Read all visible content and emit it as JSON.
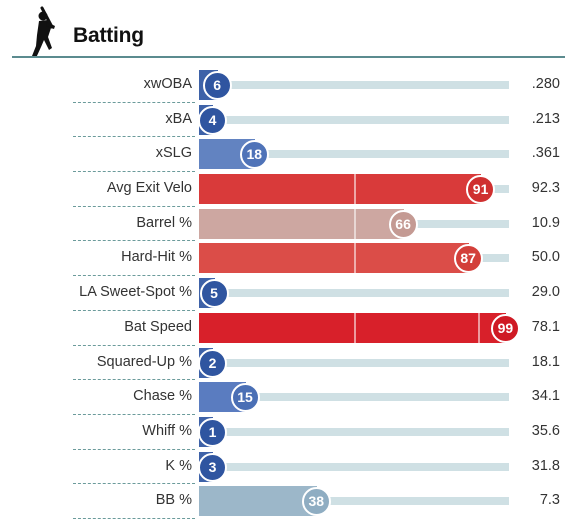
{
  "header": {
    "title": "Batting",
    "icon": "baseball-batter-icon"
  },
  "scale_max": 100,
  "rows": [
    {
      "label": "xwOBA",
      "percentile": 6,
      "value": ".280",
      "bar_color": "#3e62a8",
      "badge_color": "#2f55a0"
    },
    {
      "label": "xBA",
      "percentile": 4,
      "value": ".213",
      "bar_color": "#3e62a8",
      "badge_color": "#2f55a0"
    },
    {
      "label": "xSLG",
      "percentile": 18,
      "value": ".361",
      "bar_color": "#6283c1",
      "badge_color": "#4f73b8"
    },
    {
      "label": "Avg Exit Velo",
      "percentile": 91,
      "value": "92.3",
      "bar_color": "#d93a3a",
      "badge_color": "#cf2f2f"
    },
    {
      "label": "Barrel %",
      "percentile": 66,
      "value": "10.9",
      "bar_color": "#cda7a1",
      "badge_color": "#c49a93"
    },
    {
      "label": "Hard-Hit %",
      "percentile": 87,
      "value": "50.0",
      "bar_color": "#db4d48",
      "badge_color": "#d33f3a"
    },
    {
      "label": "LA Sweet-Spot %",
      "percentile": 5,
      "value": "29.0",
      "bar_color": "#3e62a8",
      "badge_color": "#2f55a0"
    },
    {
      "label": "Bat Speed",
      "percentile": 99,
      "value": "78.1",
      "bar_color": "#d8202a",
      "badge_color": "#cf1a24"
    },
    {
      "label": "Squared-Up %",
      "percentile": 2,
      "value": "18.1",
      "bar_color": "#3e62a8",
      "badge_color": "#2f55a0"
    },
    {
      "label": "Chase %",
      "percentile": 15,
      "value": "34.1",
      "bar_color": "#5a7cc0",
      "badge_color": "#4a6fb5"
    },
    {
      "label": "Whiff %",
      "percentile": 1,
      "value": "35.6",
      "bar_color": "#3e62a8",
      "badge_color": "#2f55a0"
    },
    {
      "label": "K %",
      "percentile": 3,
      "value": "31.8",
      "bar_color": "#3e62a8",
      "badge_color": "#2f55a0"
    },
    {
      "label": "BB %",
      "percentile": 38,
      "value": "7.3",
      "bar_color": "#9cb7c9",
      "badge_color": "#8fadc2"
    }
  ]
}
